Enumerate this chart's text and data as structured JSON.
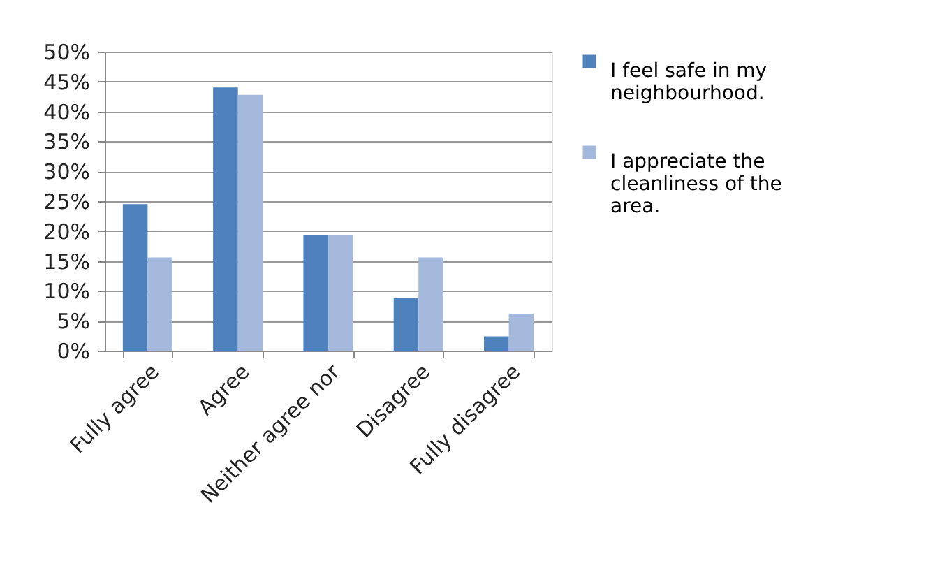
{
  "chart_data": {
    "type": "bar",
    "categories": [
      "Fully agree",
      "Agree",
      "Neither agree nor",
      "Disagree",
      "Fully disagree"
    ],
    "series": [
      {
        "name": "I feel safe in my neighbourhood.",
        "color": "#4f81bd",
        "values": [
          24.5,
          44.0,
          19.4,
          8.8,
          2.4
        ]
      },
      {
        "name": "I appreciate the cleanliness of the area.",
        "color": "#a4b9dc",
        "values": [
          15.6,
          42.8,
          19.4,
          15.6,
          6.2
        ]
      }
    ],
    "ylim": [
      0,
      50
    ],
    "yticks": [
      {
        "value": 0,
        "label": "0%"
      },
      {
        "value": 5,
        "label": "5%"
      },
      {
        "value": 10,
        "label": "10%"
      },
      {
        "value": 15,
        "label": "15%"
      },
      {
        "value": 20,
        "label": "20%"
      },
      {
        "value": 25,
        "label": "25%"
      },
      {
        "value": 30,
        "label": "30%"
      },
      {
        "value": 35,
        "label": "35%"
      },
      {
        "value": 40,
        "label": "40%"
      },
      {
        "value": 45,
        "label": "45%"
      },
      {
        "value": 50,
        "label": "50%"
      }
    ],
    "grid": "y",
    "legend": "right"
  }
}
